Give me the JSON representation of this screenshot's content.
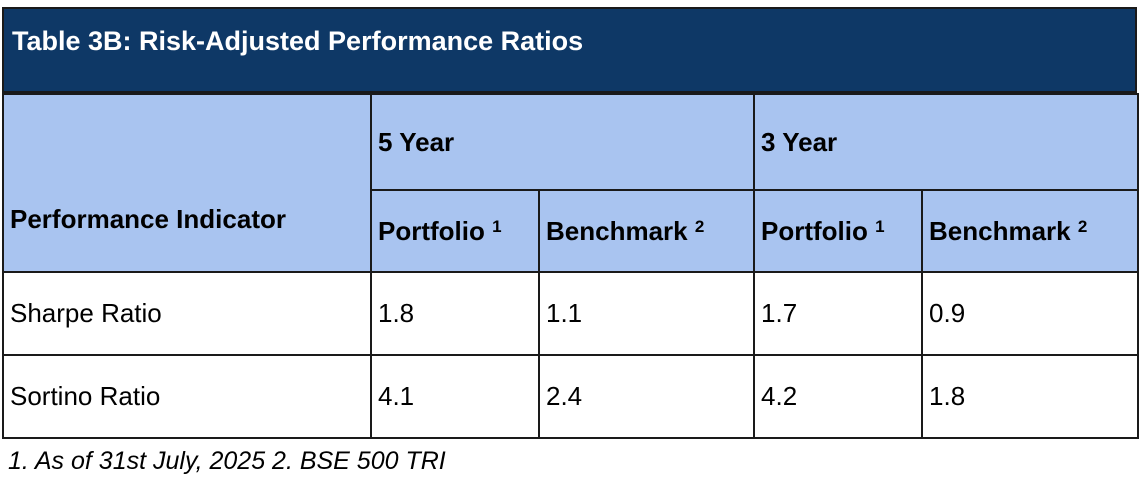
{
  "table": {
    "title": "Table 3B: Risk-Adjusted Performance Ratios",
    "indicator_header": "Performance Indicator",
    "period_groups": [
      {
        "label": "5 Year"
      },
      {
        "label": "3 Year"
      }
    ],
    "sub_headers": [
      {
        "label": "Portfolio",
        "note": "1"
      },
      {
        "label": "Benchmark",
        "note": "2"
      },
      {
        "label": "Portfolio",
        "note": "1"
      },
      {
        "label": "Benchmark",
        "note": "2"
      }
    ],
    "rows": [
      {
        "indicator": "Sharpe Ratio",
        "values": [
          "1.8",
          "1.1",
          "1.7",
          "0.9"
        ]
      },
      {
        "indicator": "Sortino Ratio",
        "values": [
          "4.1",
          "2.4",
          "4.2",
          "1.8"
        ]
      }
    ]
  },
  "footnote": "1. As of 31st July, 2025 2. BSE 500 TRI",
  "colors": {
    "title_background": "#0e3866",
    "header_background": "#a9c4f0",
    "border": "#1a1a1a"
  }
}
